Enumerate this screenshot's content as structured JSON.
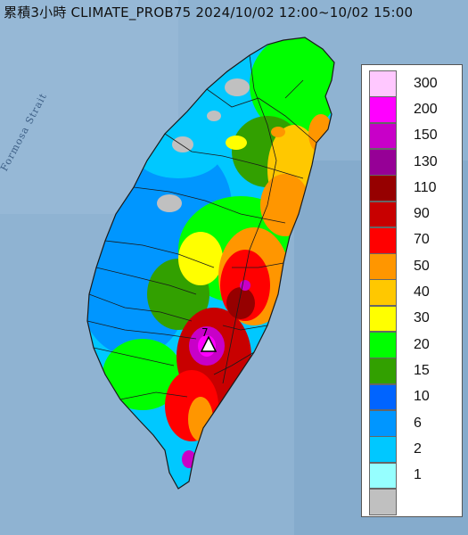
{
  "title": "累積3小時 CLIMATE_PROB75 2024/10/02 12:00~10/02 15:00",
  "sea_label": "Formosa Strait",
  "legend": [
    {
      "label": "300",
      "color": "#ffc8ff"
    },
    {
      "label": "200",
      "color": "#ff00ff"
    },
    {
      "label": "150",
      "color": "#c800c8"
    },
    {
      "label": "130",
      "color": "#960096"
    },
    {
      "label": "110",
      "color": "#960000"
    },
    {
      "label": "90",
      "color": "#c80000"
    },
    {
      "label": "70",
      "color": "#ff0000"
    },
    {
      "label": "50",
      "color": "#ff9600"
    },
    {
      "label": "40",
      "color": "#ffc800"
    },
    {
      "label": "30",
      "color": "#ffff00"
    },
    {
      "label": "20",
      "color": "#00ff00"
    },
    {
      "label": "15",
      "color": "#32a000"
    },
    {
      "label": "10",
      "color": "#0064ff"
    },
    {
      "label": "6",
      "color": "#0096ff"
    },
    {
      "label": "2",
      "color": "#00c8ff"
    },
    {
      "label": "1",
      "color": "#96ffff"
    },
    {
      "label": "",
      "color": "#c0c0c0"
    }
  ],
  "colors": {
    "sea": "#8fb3d2",
    "border": "#1a1a1a"
  }
}
